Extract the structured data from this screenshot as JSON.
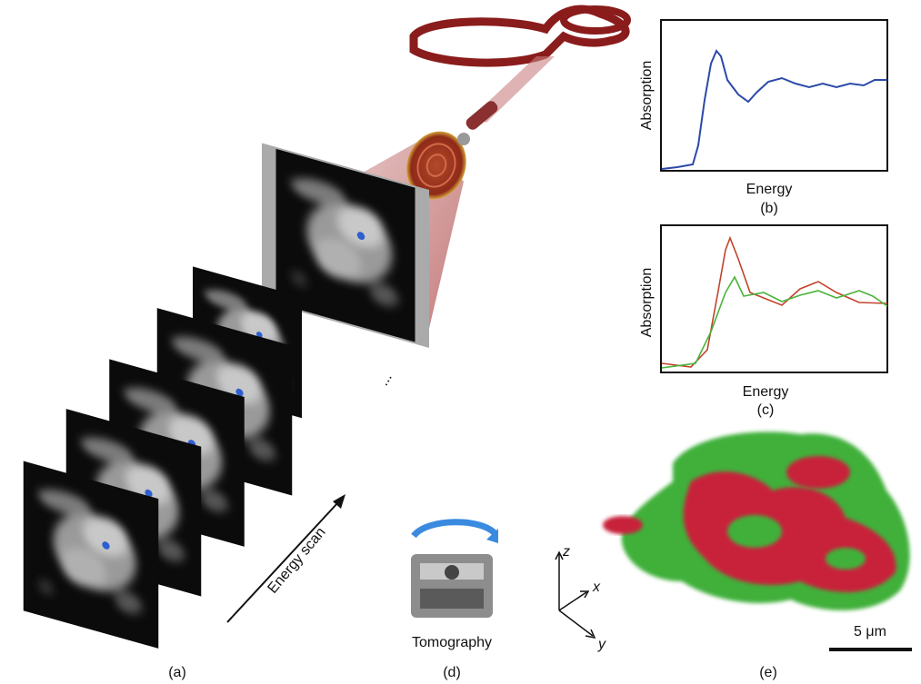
{
  "labels": {
    "a": "(a)",
    "b": "(b)",
    "c": "(c)",
    "d": "(d)",
    "e": "(e)"
  },
  "panel_b": {
    "y_label": "Absorption",
    "x_label": "Energy"
  },
  "panel_c": {
    "y_label": "Absorption",
    "x_label": "Energy"
  },
  "energy_scan": "Energy scan",
  "ellipsis": "...",
  "tomography": "Tomography",
  "axes": {
    "z": "z",
    "x": "x",
    "y": "y"
  },
  "scale_bar": "5 μm"
}
